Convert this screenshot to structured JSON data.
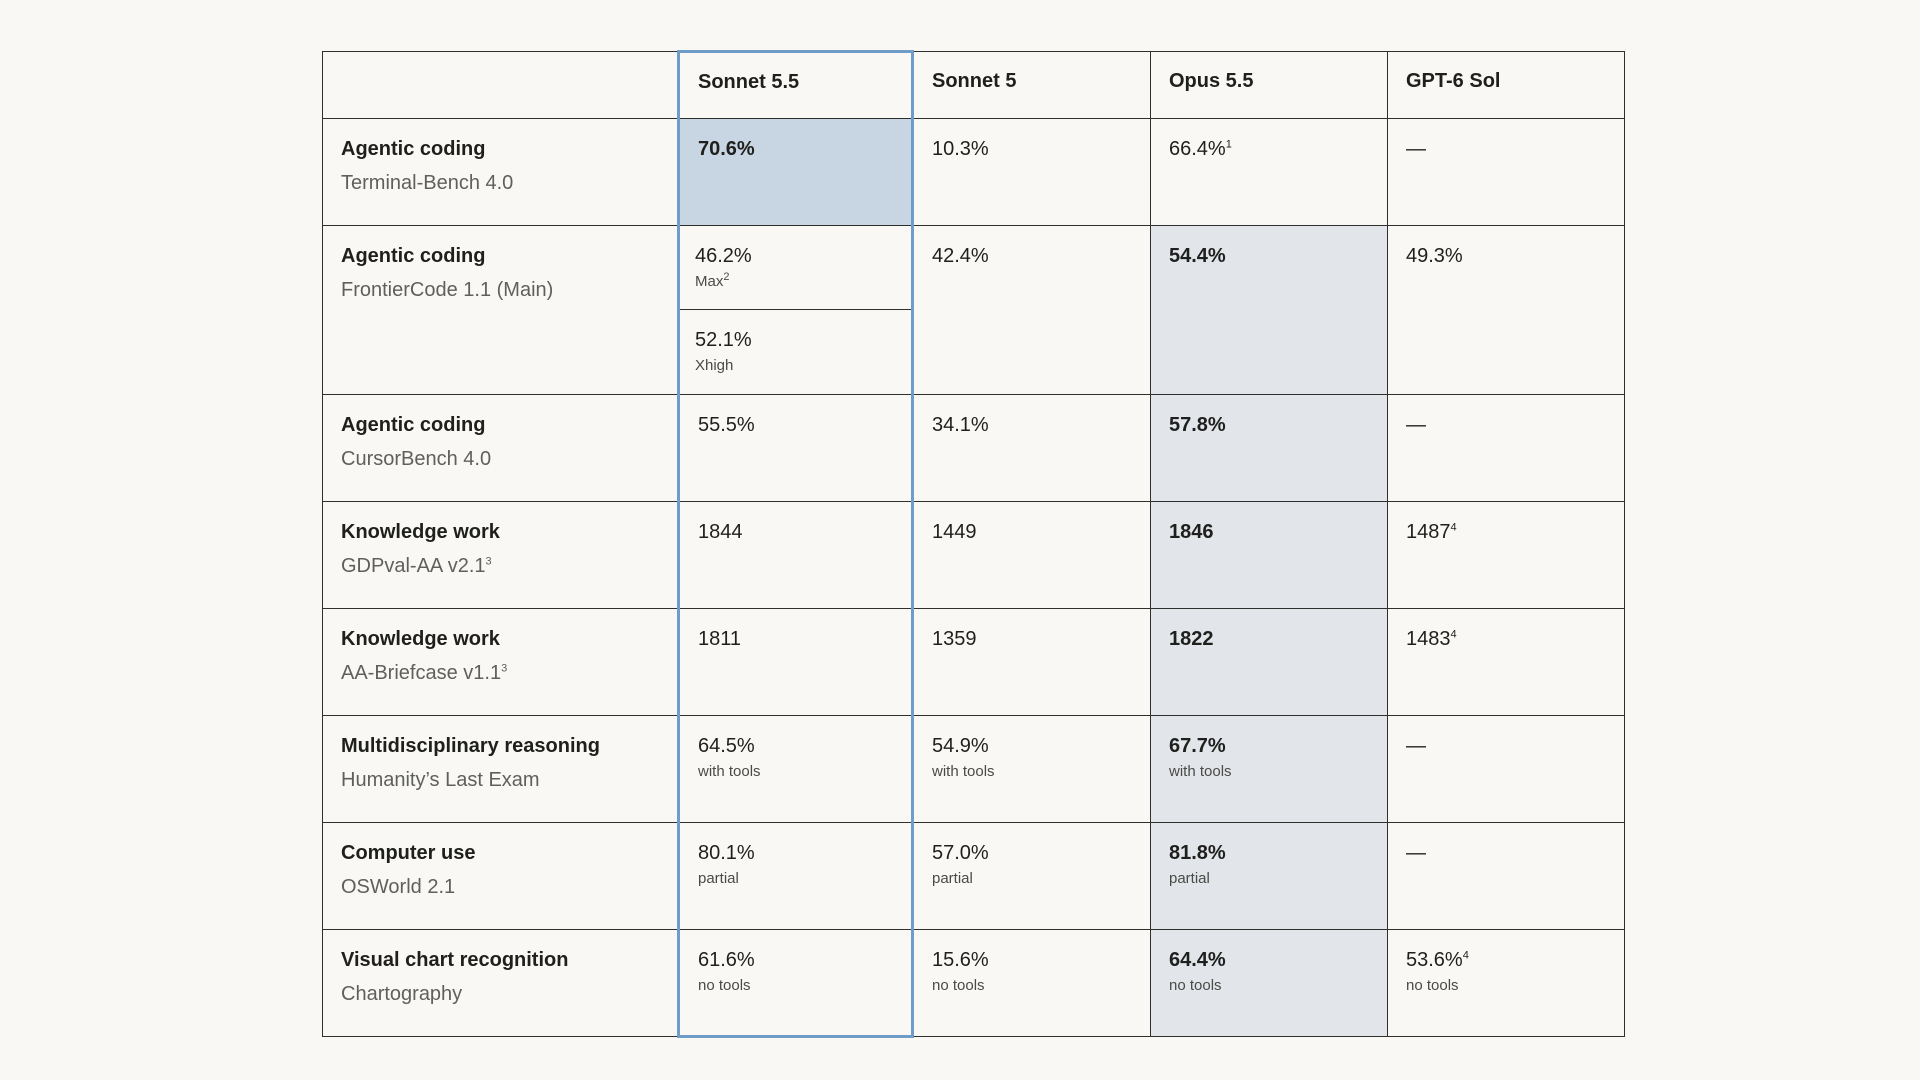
{
  "header": {
    "blank": "",
    "columns": [
      "Sonnet 5.5",
      "Sonnet 5",
      "Opus 5.5",
      "GPT-6 Sol"
    ]
  },
  "rows": [
    {
      "category": "Agentic coding",
      "benchmark": "Terminal-Bench 4.0",
      "benchmark_sup": "",
      "sonnet55": {
        "value": "70.6%",
        "note": "",
        "sup": ""
      },
      "sonnet5": {
        "value": "10.3%",
        "note": "",
        "sup": ""
      },
      "opus55": {
        "value": "66.4%",
        "note": "",
        "sup": "1"
      },
      "gpt6": {
        "value": "—",
        "note": "",
        "sup": ""
      }
    },
    {
      "category": "Agentic coding",
      "benchmark": "FrontierCode 1.1 (Main)",
      "benchmark_sup": "",
      "sonnet55_a": {
        "value": "46.2%",
        "note": "Max",
        "sup": "2"
      },
      "sonnet55_b": {
        "value": "52.1%",
        "note": "Xhigh",
        "sup": ""
      },
      "sonnet5": {
        "value": "42.4%",
        "note": "",
        "sup": ""
      },
      "opus55": {
        "value": "54.4%",
        "note": "",
        "sup": ""
      },
      "gpt6": {
        "value": "49.3%",
        "note": "",
        "sup": ""
      }
    },
    {
      "category": "Agentic coding",
      "benchmark": "CursorBench 4.0",
      "benchmark_sup": "",
      "sonnet55": {
        "value": "55.5%",
        "note": "",
        "sup": ""
      },
      "sonnet5": {
        "value": "34.1%",
        "note": "",
        "sup": ""
      },
      "opus55": {
        "value": "57.8%",
        "note": "",
        "sup": ""
      },
      "gpt6": {
        "value": "—",
        "note": "",
        "sup": ""
      }
    },
    {
      "category": "Knowledge work",
      "benchmark": "GDPval-AA v2.1",
      "benchmark_sup": "3",
      "sonnet55": {
        "value": "1844",
        "note": "",
        "sup": ""
      },
      "sonnet5": {
        "value": "1449",
        "note": "",
        "sup": ""
      },
      "opus55": {
        "value": "1846",
        "note": "",
        "sup": ""
      },
      "gpt6": {
        "value": "1487",
        "note": "",
        "sup": "4"
      }
    },
    {
      "category": "Knowledge work",
      "benchmark": "AA-Briefcase v1.1",
      "benchmark_sup": "3",
      "sonnet55": {
        "value": "1811",
        "note": "",
        "sup": ""
      },
      "sonnet5": {
        "value": "1359",
        "note": "",
        "sup": ""
      },
      "opus55": {
        "value": "1822",
        "note": "",
        "sup": ""
      },
      "gpt6": {
        "value": "1483",
        "note": "",
        "sup": "4"
      }
    },
    {
      "category": "Multidisciplinary reasoning",
      "benchmark": "Humanity’s Last Exam",
      "benchmark_sup": "",
      "sonnet55": {
        "value": "64.5%",
        "note": "with tools",
        "sup": ""
      },
      "sonnet5": {
        "value": "54.9%",
        "note": "with tools",
        "sup": ""
      },
      "opus55": {
        "value": "67.7%",
        "note": "with tools",
        "sup": ""
      },
      "gpt6": {
        "value": "—",
        "note": "",
        "sup": ""
      }
    },
    {
      "category": "Computer use",
      "benchmark": "OSWorld 2.1",
      "benchmark_sup": "",
      "sonnet55": {
        "value": "80.1%",
        "note": "partial",
        "sup": ""
      },
      "sonnet5": {
        "value": "57.0%",
        "note": "partial",
        "sup": ""
      },
      "opus55": {
        "value": "81.8%",
        "note": "partial",
        "sup": ""
      },
      "gpt6": {
        "value": "—",
        "note": "",
        "sup": ""
      }
    },
    {
      "category": "Visual chart recognition",
      "benchmark": "Chartography",
      "benchmark_sup": "",
      "sonnet55": {
        "value": "61.6%",
        "note": "no tools",
        "sup": ""
      },
      "sonnet5": {
        "value": "15.6%",
        "note": "no tools",
        "sup": ""
      },
      "opus55": {
        "value": "64.4%",
        "note": "no tools",
        "sup": ""
      },
      "gpt6": {
        "value": "53.6%",
        "note": "no tools",
        "sup": "4"
      }
    }
  ],
  "colors": {
    "background": "#f9f8f5",
    "highlight_border": "#6f9cc8",
    "highlight_fill": "#c7d6e2",
    "opus_shade": "#e2e5ea"
  }
}
